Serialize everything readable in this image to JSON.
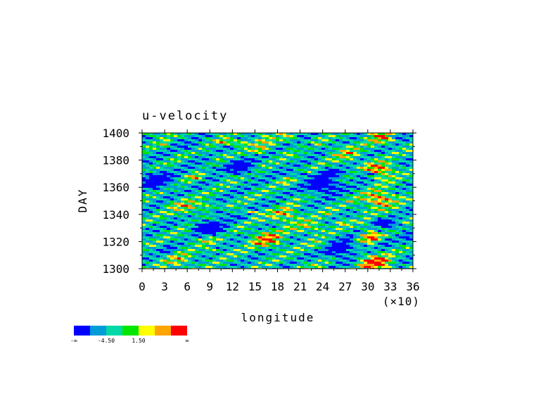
{
  "chart_data": {
    "type": "heatmap",
    "title": "u-velocity",
    "xlabel": "longitude",
    "ylabel": "DAY",
    "x_multiplier_label": "(×10)",
    "xlim": [
      0,
      36
    ],
    "ylim": [
      1300,
      1400
    ],
    "x_ticks": [
      "0",
      "3",
      "6",
      "9",
      "12",
      "15",
      "18",
      "21",
      "24",
      "27",
      "30",
      "33",
      "36"
    ],
    "y_ticks": [
      "1300",
      "1320",
      "1340",
      "1360",
      "1380",
      "1400"
    ],
    "x_tick_values": [
      0,
      3,
      6,
      9,
      12,
      15,
      18,
      21,
      24,
      27,
      30,
      33,
      36
    ],
    "y_tick_values": [
      1300,
      1320,
      1340,
      1360,
      1380,
      1400
    ],
    "colorbar": {
      "colors": [
        "#0000ff",
        "#009bd9",
        "#00d9a6",
        "#00e600",
        "#ffff00",
        "#ffa500",
        "#ff0000"
      ],
      "labels": [
        "-∞",
        "-4.50",
        "1.50",
        "∞"
      ]
    },
    "features": [
      {
        "lon": 16.5,
        "day": 1322,
        "value": 4.5
      },
      {
        "lon": 19.0,
        "day": 1340,
        "value": 3.5
      },
      {
        "lon": 31.0,
        "day": 1304,
        "value": 6.0
      },
      {
        "lon": 30.5,
        "day": 1324,
        "value": 5.0
      },
      {
        "lon": 31.5,
        "day": 1351,
        "value": 5.0
      },
      {
        "lon": 31.5,
        "day": 1372,
        "value": 5.0
      },
      {
        "lon": 32.0,
        "day": 1398,
        "value": 4.0
      },
      {
        "lon": 5.0,
        "day": 1306,
        "value": 2.5
      },
      {
        "lon": 6.0,
        "day": 1345,
        "value": 2.5
      },
      {
        "lon": 17.0,
        "day": 1395,
        "value": 3.0
      },
      {
        "lon": 22.0,
        "day": 1330,
        "value": 2.0
      },
      {
        "lon": 27.0,
        "day": 1385,
        "value": 2.5
      },
      {
        "lon": 12.5,
        "day": 1375,
        "value": -6.0
      },
      {
        "lon": 24.0,
        "day": 1362,
        "value": -6.5
      },
      {
        "lon": 2.0,
        "day": 1365,
        "value": -5.5
      },
      {
        "lon": 26.0,
        "day": 1315,
        "value": -6.0
      },
      {
        "lon": 9.0,
        "day": 1330,
        "value": -5.0
      }
    ]
  }
}
